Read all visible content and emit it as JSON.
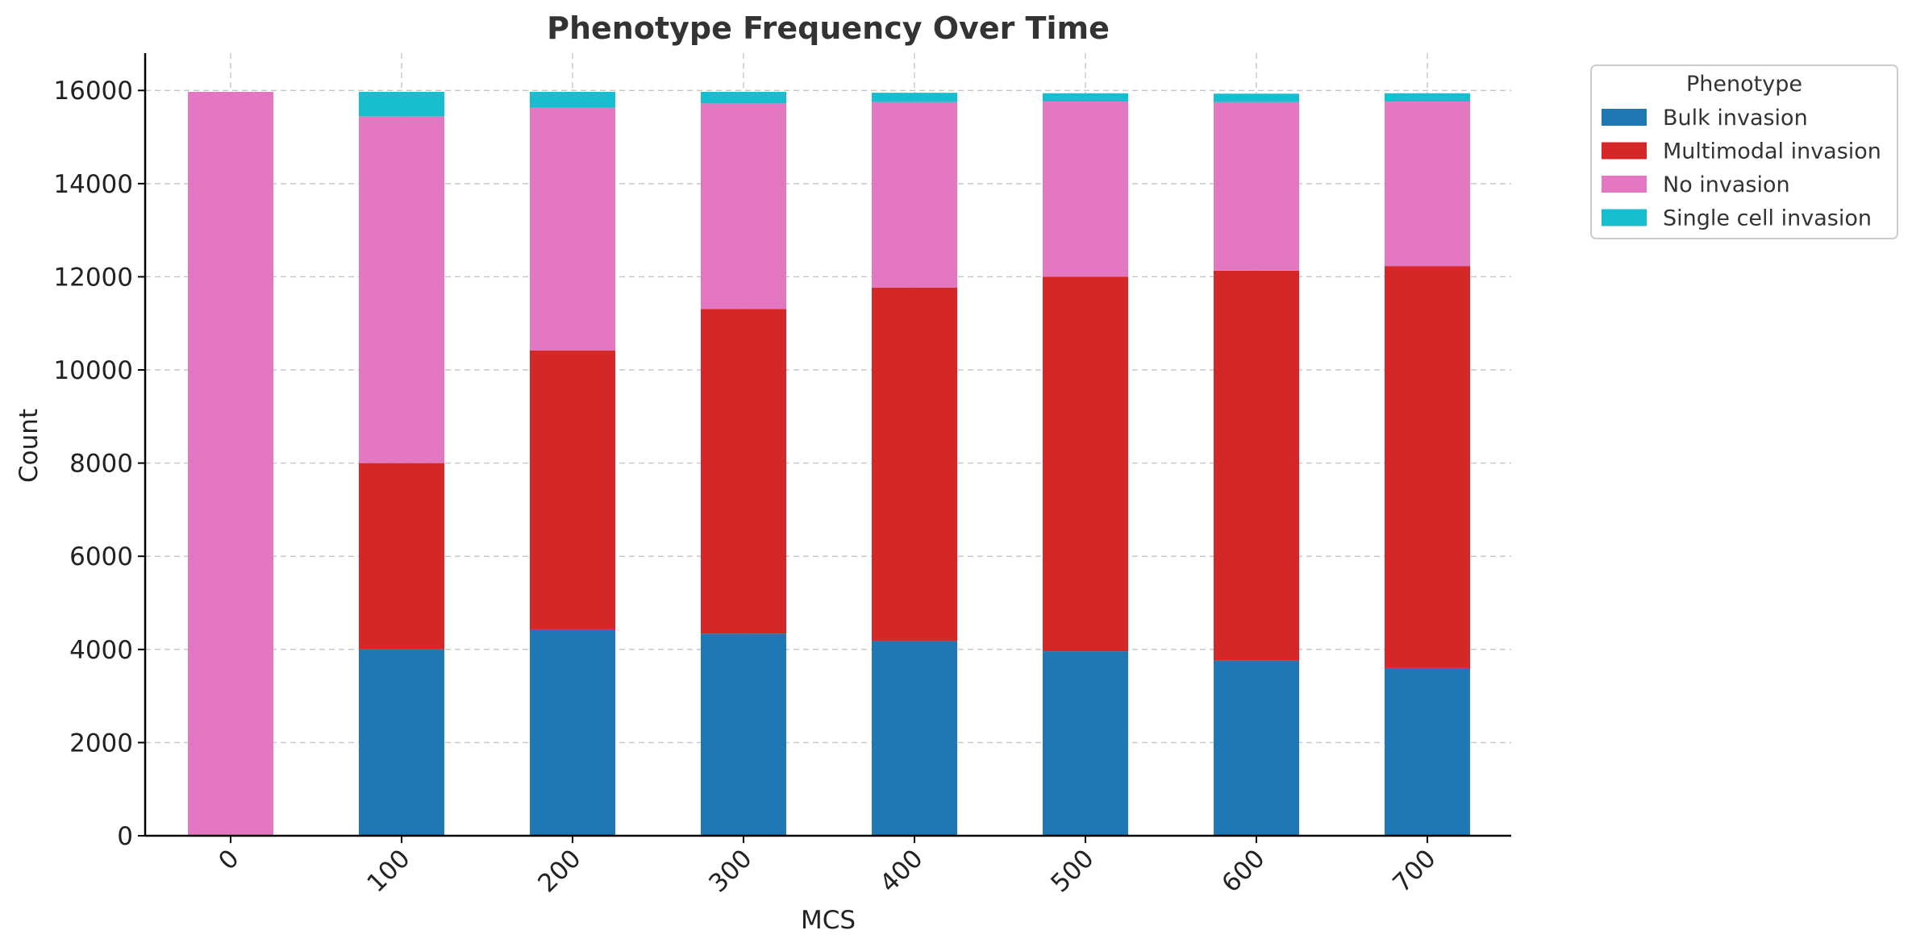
{
  "chart_data": {
    "type": "bar",
    "stacked": true,
    "title": "Phenotype Frequency Over Time",
    "xlabel": "MCS",
    "ylabel": "Count",
    "categories": [
      "0",
      "100",
      "200",
      "300",
      "400",
      "500",
      "600",
      "700"
    ],
    "ylim": [
      0,
      16800
    ],
    "yticks": [
      0,
      2000,
      4000,
      6000,
      8000,
      10000,
      12000,
      14000,
      16000
    ],
    "ytick_labels": [
      "0",
      "2000",
      "4000",
      "6000",
      "8000",
      "10000",
      "12000",
      "14000",
      "16000"
    ],
    "grid": true,
    "legend": {
      "title": "Phenotype",
      "position": "outside-top-right"
    },
    "series": [
      {
        "name": "Bulk invasion",
        "color": "#1f77b4",
        "values": [
          0,
          4000,
          4430,
          4340,
          4180,
          3960,
          3760,
          3600
        ]
      },
      {
        "name": "Multimodal invasion",
        "color": "#d62728",
        "values": [
          0,
          4000,
          5990,
          6970,
          7590,
          8040,
          8370,
          8630
        ]
      },
      {
        "name": "No invasion",
        "color": "#e377c2",
        "values": [
          15970,
          7440,
          5210,
          4410,
          3980,
          3760,
          3620,
          3530
        ]
      },
      {
        "name": "Single cell invasion",
        "color": "#17becf",
        "values": [
          0,
          530,
          340,
          250,
          200,
          180,
          180,
          180
        ]
      }
    ]
  }
}
